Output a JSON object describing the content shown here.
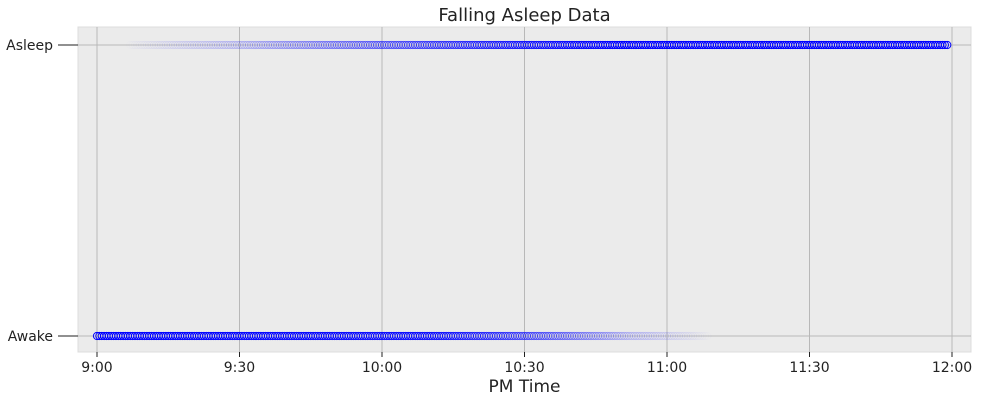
{
  "chart_data": {
    "type": "scatter",
    "title": "Falling Asleep Data",
    "xlabel": "PM Time",
    "ylabel": "",
    "x_unit": "time",
    "xlim": [
      "8:56",
      "12:04"
    ],
    "x_ticks": [
      "9:00",
      "9:30",
      "10:00",
      "10:30",
      "11:00",
      "11:30",
      "12:00"
    ],
    "y_categories": [
      "Awake",
      "Asleep"
    ],
    "grid": true,
    "background": "#ebebeb",
    "grid_color": "#b8b8b8",
    "marker_color": "#0000ff",
    "marker": "circle",
    "series": [
      {
        "y": "Awake",
        "x_start": "9:00",
        "x_end": "11:10",
        "opacity_profile": [
          {
            "x": "9:00",
            "opacity": 1.0
          },
          {
            "x": "10:10",
            "opacity": 0.85
          },
          {
            "x": "10:35",
            "opacity": 0.45
          },
          {
            "x": "10:52",
            "opacity": 0.15
          },
          {
            "x": "11:10",
            "opacity": 0.0
          }
        ]
      },
      {
        "y": "Asleep",
        "x_start": "9:05",
        "x_end": "11:59",
        "opacity_profile": [
          {
            "x": "9:05",
            "opacity": 0.0
          },
          {
            "x": "9:30",
            "opacity": 0.15
          },
          {
            "x": "9:55",
            "opacity": 0.4
          },
          {
            "x": "10:25",
            "opacity": 0.75
          },
          {
            "x": "10:50",
            "opacity": 1.0
          },
          {
            "x": "11:59",
            "opacity": 1.0
          }
        ]
      }
    ]
  }
}
